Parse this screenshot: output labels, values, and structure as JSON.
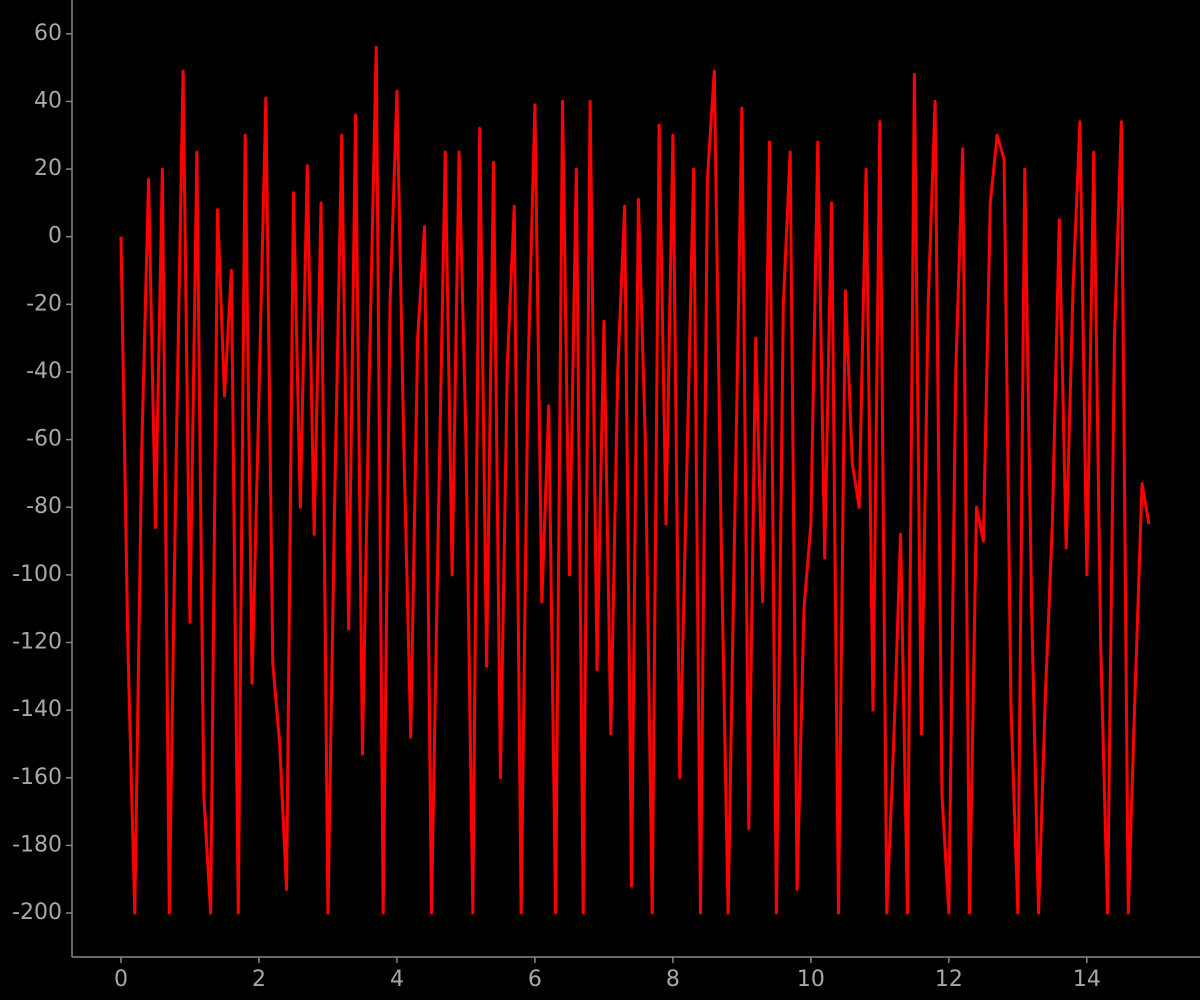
{
  "chart_data": {
    "type": "line",
    "color": "#ff0000",
    "grid": false,
    "xlim": [
      -0.71,
      15.64
    ],
    "ylim": [
      -213,
      70
    ],
    "xticks": [
      0,
      2,
      4,
      6,
      8,
      10,
      12,
      14
    ],
    "yticks": [
      -200,
      -180,
      -160,
      -140,
      -120,
      -100,
      -80,
      -60,
      -40,
      -20,
      0,
      20,
      40,
      60
    ],
    "x": [
      0,
      0.1,
      0.2,
      0.3,
      0.4,
      0.5,
      0.6,
      0.7,
      0.8,
      0.9,
      1,
      1.1,
      1.2,
      1.3,
      1.4,
      1.5,
      1.6,
      1.7,
      1.8,
      1.9,
      2,
      2.1,
      2.2,
      2.3,
      2.4,
      2.5,
      2.6,
      2.7,
      2.8,
      2.9,
      3,
      3.1,
      3.2,
      3.3,
      3.4,
      3.5,
      3.6,
      3.7,
      3.8,
      3.9,
      4,
      4.1,
      4.2,
      4.3,
      4.4,
      4.5,
      4.6,
      4.7,
      4.8,
      4.9,
      5,
      5.1,
      5.2,
      5.3,
      5.4,
      5.5,
      5.6,
      5.7,
      5.8,
      5.9,
      6,
      6.1,
      6.2,
      6.3,
      6.4,
      6.5,
      6.6,
      6.7,
      6.8,
      6.9,
      7,
      7.1,
      7.2,
      7.3,
      7.4,
      7.5,
      7.6,
      7.7,
      7.8,
      7.9,
      8,
      8.1,
      8.2,
      8.3,
      8.4,
      8.5,
      8.6,
      8.7,
      8.8,
      8.9,
      9,
      9.1,
      9.2,
      9.3,
      9.4,
      9.5,
      9.6,
      9.7,
      9.8,
      9.9,
      10,
      10.1,
      10.2,
      10.3,
      10.4,
      10.5,
      10.6,
      10.7,
      10.8,
      10.9,
      11,
      11.1,
      11.2,
      11.3,
      11.4,
      11.5,
      11.6,
      11.7,
      11.8,
      11.9,
      12,
      12.1,
      12.2,
      12.3,
      12.4,
      12.5,
      12.6,
      12.7,
      12.8,
      12.9,
      13,
      13.1,
      13.2,
      13.3,
      13.4,
      13.5,
      13.6,
      13.7,
      13.8,
      13.9,
      14,
      14.1,
      14.2,
      14.3,
      14.4,
      14.5,
      14.6,
      14.7,
      14.8,
      14.9
    ],
    "values": [
      0,
      -121,
      -200,
      -64,
      17,
      -86,
      20,
      -200,
      -65,
      49,
      -114,
      25,
      -165,
      -200,
      8,
      -47,
      -10,
      -200,
      30,
      -132,
      -47,
      41,
      -126,
      -150,
      -193,
      13,
      -80,
      21,
      -88,
      10,
      -200,
      -75,
      30,
      -116,
      36,
      -153,
      -40,
      56,
      -200,
      -20,
      43,
      -62,
      -148,
      -30,
      3,
      -200,
      -85,
      25,
      -100,
      25,
      -60,
      -200,
      32,
      -127,
      22,
      -160,
      -38,
      9,
      -200,
      -40,
      39,
      -108,
      -50,
      -200,
      40,
      -100,
      20,
      -200,
      40,
      -128,
      -25,
      -147,
      -40,
      9,
      -192,
      11,
      -60,
      -200,
      33,
      -85,
      30,
      -160,
      -70,
      20,
      -200,
      17,
      49,
      -90,
      -200,
      -80,
      38,
      -175,
      -30,
      -108,
      28,
      -200,
      -20,
      25,
      -193,
      -110,
      -85,
      28,
      -95,
      10,
      -200,
      -16,
      -67,
      -80,
      20,
      -140,
      34,
      -200,
      -150,
      -88,
      -200,
      48,
      -147,
      -20,
      40,
      -165,
      -200,
      -40,
      26,
      -200,
      -80,
      -90,
      10,
      30,
      23,
      -139,
      -200,
      20,
      -110,
      -200,
      -135,
      -85,
      5,
      -92,
      -15,
      34,
      -100,
      25,
      -120,
      -200,
      -30,
      34,
      -200,
      -134,
      -73,
      -85
    ]
  }
}
